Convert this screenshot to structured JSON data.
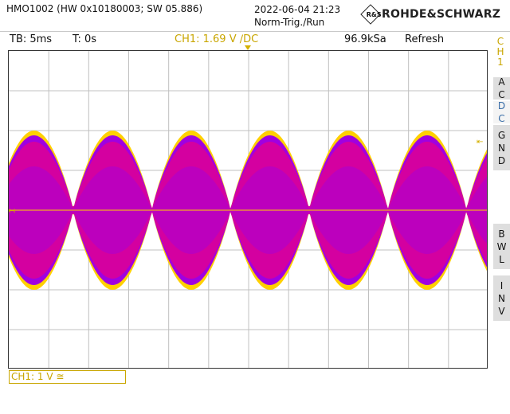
{
  "header": {
    "device": "HMO1002 (HW 0x10180003; SW 05.886)",
    "datetime": "2022-06-04 21:23",
    "trigger_state": "Norm-Trig./Run",
    "brand": "ROHDE&SCHWARZ",
    "brand_mark": "R&S"
  },
  "status": {
    "timebase": "TB: 5ms",
    "trigger_time": "T: 0s",
    "channel_info": "CH1: 1.69 V ∕DC",
    "sample_rate": "96.9kSa",
    "acq_mode": "Refresh"
  },
  "sidebar": {
    "channel_label": [
      "C",
      "H",
      "1"
    ],
    "buttons": {
      "ac": [
        "A",
        "C"
      ],
      "dc": [
        "D",
        "C"
      ],
      "gnd": [
        "G",
        "N",
        "D"
      ],
      "bwl": [
        "B",
        "W",
        "L"
      ],
      "inv": [
        "I",
        "N",
        "V"
      ]
    }
  },
  "footer": {
    "channel_scale": "CH1: 1 V ≅"
  },
  "colors": {
    "channel": "#c9a600",
    "grid": "#c0c0c0",
    "trace_core": "#d400a0",
    "trace_mid": "#a000e0",
    "trace_edge": "#ffd000"
  },
  "markers": {
    "ground_marker": "↤",
    "trigger_level_marker": "⇤"
  },
  "waveform": {
    "cycles_visible": 6.1,
    "amplitude_divisions": 2.0,
    "offset_divisions": 0
  }
}
